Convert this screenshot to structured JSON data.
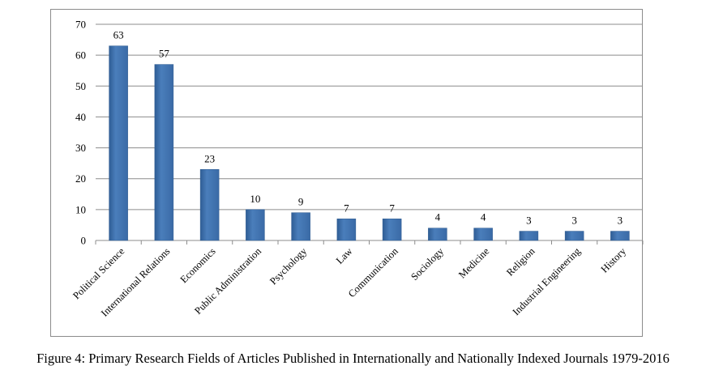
{
  "caption": "Figure 4: Primary Research Fields of Articles Published in Internationally and Nationally Indexed Journals 1979-2016",
  "chart_data": {
    "type": "bar",
    "categories": [
      "Political Science",
      "International Relations",
      "Economics",
      "Public Administration",
      "Psychology",
      "Law",
      "Communication",
      "Sociology",
      "Medicine",
      "Religion",
      "Industrial Engineering",
      "History"
    ],
    "values": [
      63,
      57,
      23,
      10,
      9,
      7,
      7,
      4,
      4,
      3,
      3,
      3
    ],
    "title": "",
    "xlabel": "",
    "ylabel": "",
    "ylim": [
      0,
      70
    ],
    "yticks": [
      0,
      10,
      20,
      30,
      40,
      50,
      60,
      70
    ],
    "grid": true,
    "legend": "none",
    "bar_color": "#4a7ebb",
    "bar_color_dark": "#2f5d95",
    "grid_color": "#8c8c8c"
  }
}
